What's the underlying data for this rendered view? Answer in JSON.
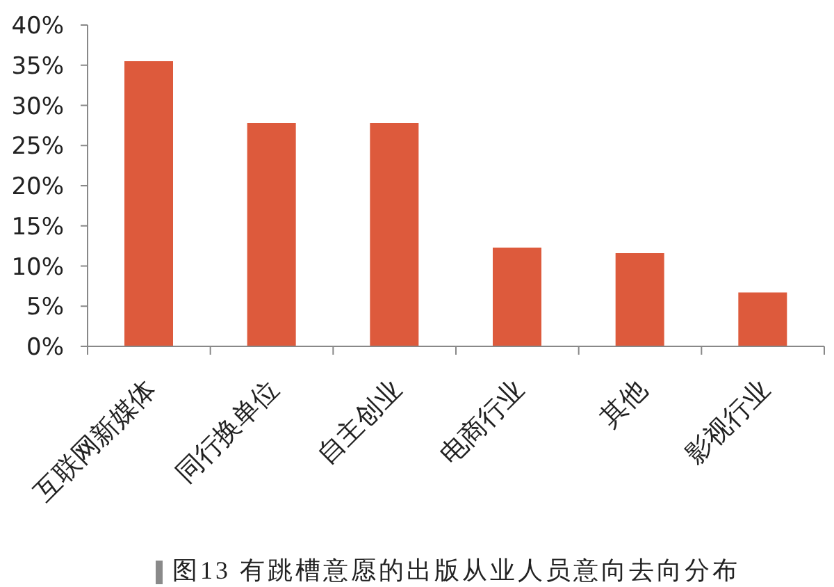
{
  "chart_data": {
    "type": "bar",
    "title": "图13 有跳槽意愿的出版从业人员意向去向分布",
    "categories": [
      "互联网新媒体",
      "同行换单位",
      "自主创业",
      "电商行业",
      "其他",
      "影视行业"
    ],
    "values": [
      35.5,
      27.8,
      27.8,
      12.3,
      11.6,
      6.7
    ],
    "color": "#dd5a3c",
    "ylim": [
      0,
      40
    ],
    "yticks": [
      {
        "value": 0,
        "label": "0%"
      },
      {
        "value": 5,
        "label": "5%"
      },
      {
        "value": 10,
        "label": "10%"
      },
      {
        "value": 15,
        "label": "15%"
      },
      {
        "value": 20,
        "label": "20%"
      },
      {
        "value": 25,
        "label": "25%"
      },
      {
        "value": 30,
        "label": "30%"
      },
      {
        "value": 35,
        "label": "35%"
      },
      {
        "value": 40,
        "label": "40%"
      }
    ]
  }
}
